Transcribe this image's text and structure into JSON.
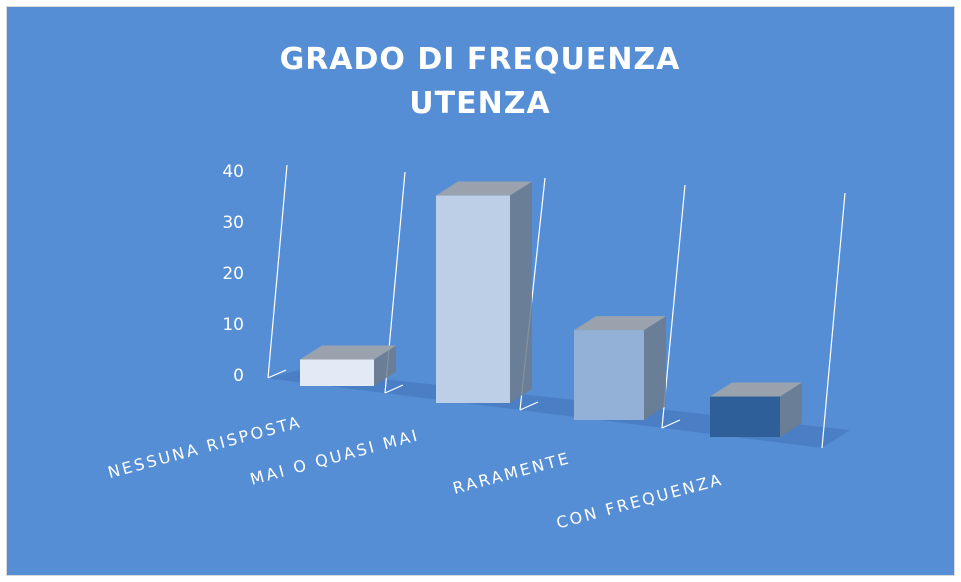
{
  "chart_data": {
    "type": "bar3d",
    "title": "GRADO DI FREQUENZA UTENZA",
    "categories": [
      "NESSUNA RISPOSTA",
      "MAI O QUASI MAI",
      "RARAMENTE",
      "CON FREQUENZA"
    ],
    "values": [
      5,
      38,
      16,
      7
    ],
    "colors": [
      "#e2eaf5",
      "#bccfe7",
      "#93b1d6",
      "#2f5f99"
    ],
    "ylim": [
      0,
      40
    ],
    "yticks": [
      0,
      10,
      20,
      30,
      40
    ]
  }
}
